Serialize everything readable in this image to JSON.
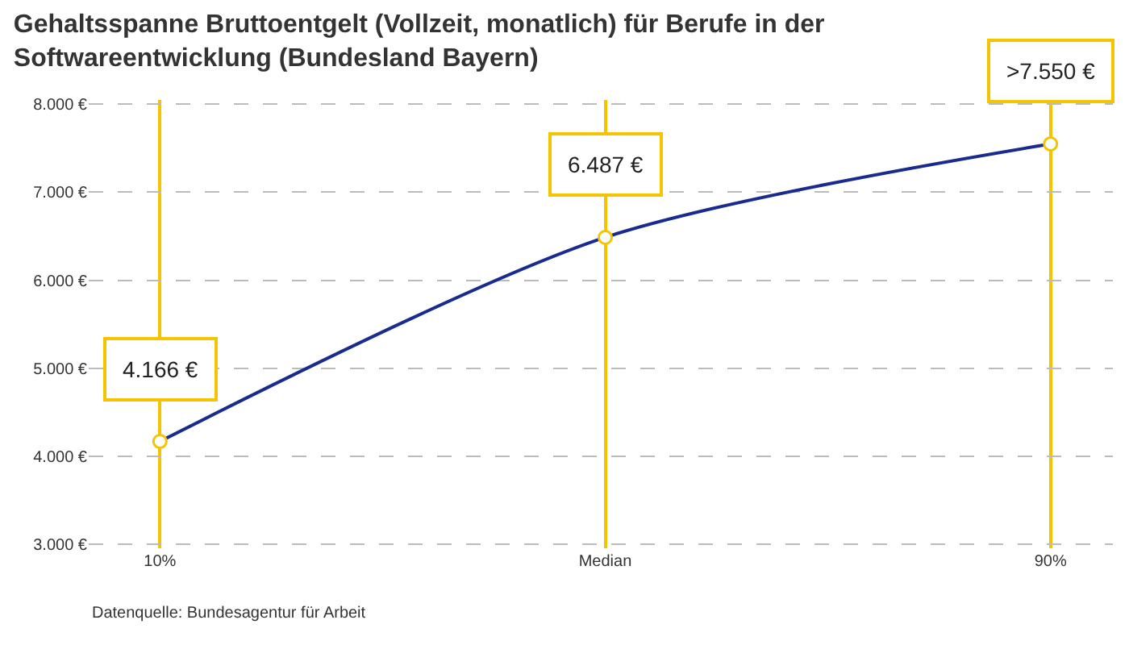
{
  "chart_data": {
    "type": "line",
    "title": "Gehaltsspanne Bruttoentgelt (Vollzeit, monatlich) für Berufe in der Softwareentwicklung (Bundesland Bayern)",
    "categories": [
      "10%",
      "Median",
      "90%"
    ],
    "values": [
      4166,
      6487,
      7550
    ],
    "value_labels": [
      "4.166 €",
      "6.487 €",
      ">7.550 €"
    ],
    "color": "#1a2b8f",
    "marker": "circle",
    "line_style": "solid",
    "grid": true,
    "ylim": [
      2950,
      8050
    ],
    "yticks": [
      {
        "value": 3000,
        "label": "3.000 €"
      },
      {
        "value": 4000,
        "label": "4.000 €"
      },
      {
        "value": 5000,
        "label": "5.000 €"
      },
      {
        "value": 6000,
        "label": "6.000 €"
      },
      {
        "value": 7000,
        "label": "7.000 €"
      },
      {
        "value": 8000,
        "label": "8.000 €"
      }
    ],
    "annotations": [
      "Datenquelle: Bundesagentur für Arbeit"
    ]
  }
}
